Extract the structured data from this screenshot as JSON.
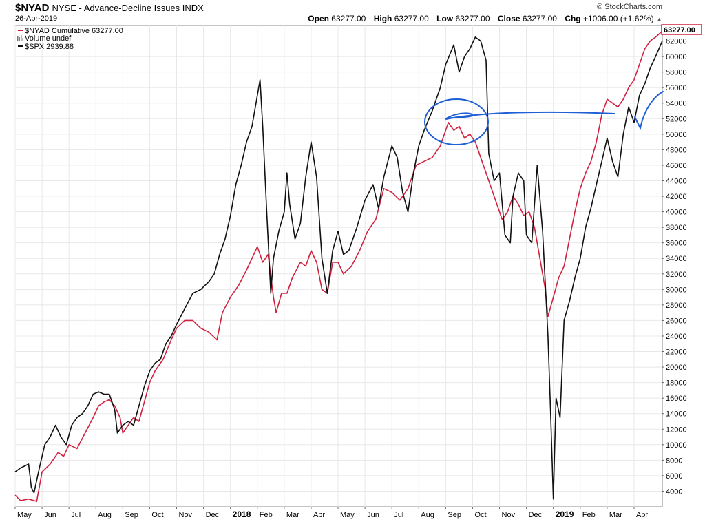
{
  "header": {
    "symbol": "$NYAD",
    "title": "NYSE - Advance-Decline Issues INDX",
    "date": "26-Apr-2019",
    "brand": "© StockCharts.com",
    "open_label": "Open",
    "open": "63277.00",
    "high_label": "High",
    "high": "63277.00",
    "low_label": "Low",
    "low": "63277.00",
    "close_label": "Close",
    "close": "63277.00",
    "chg_label": "Chg",
    "chg": "+1006.00 (+1.62%)",
    "chg_arrow": "▲"
  },
  "colors": {
    "nyad": "#d0213f",
    "spx": "#111111",
    "annotation": "#1f5fd6",
    "last_value_box": "#d0213f",
    "grid": "#e8e8e8"
  },
  "chart_data": {
    "type": "line",
    "title": "$NYAD NYSE - Advance-Decline Issues INDX",
    "ylim": [
      2000,
      64000
    ],
    "y_ticks": [
      4000,
      6000,
      8000,
      10000,
      12000,
      14000,
      16000,
      18000,
      20000,
      22000,
      24000,
      26000,
      28000,
      30000,
      32000,
      34000,
      36000,
      38000,
      40000,
      42000,
      44000,
      46000,
      48000,
      50000,
      52000,
      54000,
      56000,
      58000,
      60000,
      62000
    ],
    "x_ticks": [
      "May",
      "Jun",
      "Jul",
      "Aug",
      "Sep",
      "Oct",
      "Nov",
      "Dec",
      "2018",
      "Feb",
      "Mar",
      "Apr",
      "May",
      "Jun",
      "Jul",
      "Aug",
      "Sep",
      "Oct",
      "Nov",
      "Dec",
      "2019",
      "Feb",
      "Mar",
      "Apr"
    ],
    "x_tick_bold": [
      "2018",
      "2019"
    ],
    "last_value_label": "63277.00",
    "legend": [
      {
        "name": "$NYAD Cumulative 63277.00",
        "icon": "line-red"
      },
      {
        "name": "Volume undef",
        "icon": "volume-bars"
      },
      {
        "name": "$SPX 2939.88",
        "icon": "line-black"
      }
    ],
    "series": [
      {
        "name": "$NYAD Cumulative",
        "values": [
          [
            0.0,
            3500
          ],
          [
            0.2,
            2800
          ],
          [
            0.5,
            3000
          ],
          [
            0.8,
            2700
          ],
          [
            1.0,
            6500
          ],
          [
            1.3,
            7500
          ],
          [
            1.6,
            9000
          ],
          [
            1.8,
            8500
          ],
          [
            2.0,
            10000
          ],
          [
            2.3,
            9500
          ],
          [
            2.6,
            11500
          ],
          [
            2.9,
            13500
          ],
          [
            3.1,
            15000
          ],
          [
            3.3,
            15500
          ],
          [
            3.5,
            15800
          ],
          [
            3.7,
            15000
          ],
          [
            3.9,
            13500
          ],
          [
            4.0,
            11500
          ],
          [
            4.2,
            12500
          ],
          [
            4.4,
            13500
          ],
          [
            4.6,
            13000
          ],
          [
            4.8,
            15500
          ],
          [
            5.0,
            18000
          ],
          [
            5.2,
            19500
          ],
          [
            5.5,
            21000
          ],
          [
            5.8,
            23500
          ],
          [
            6.0,
            25000
          ],
          [
            6.3,
            26000
          ],
          [
            6.6,
            26000
          ],
          [
            6.9,
            25000
          ],
          [
            7.2,
            24500
          ],
          [
            7.5,
            23500
          ],
          [
            7.7,
            27000
          ],
          [
            8.0,
            29000
          ],
          [
            8.3,
            30500
          ],
          [
            8.6,
            32500
          ],
          [
            8.8,
            34000
          ],
          [
            9.0,
            35500
          ],
          [
            9.2,
            33500
          ],
          [
            9.4,
            34500
          ],
          [
            9.6,
            29000
          ],
          [
            9.7,
            27000
          ],
          [
            9.9,
            29500
          ],
          [
            10.1,
            29500
          ],
          [
            10.3,
            31500
          ],
          [
            10.6,
            33500
          ],
          [
            10.8,
            33000
          ],
          [
            11.0,
            35000
          ],
          [
            11.2,
            33500
          ],
          [
            11.4,
            30000
          ],
          [
            11.6,
            29500
          ],
          [
            11.8,
            33500
          ],
          [
            12.0,
            33500
          ],
          [
            12.2,
            32000
          ],
          [
            12.5,
            33000
          ],
          [
            12.8,
            35000
          ],
          [
            13.1,
            37500
          ],
          [
            13.4,
            39000
          ],
          [
            13.7,
            43000
          ],
          [
            14.0,
            42500
          ],
          [
            14.3,
            41500
          ],
          [
            14.6,
            43000
          ],
          [
            14.9,
            46000
          ],
          [
            15.2,
            46500
          ],
          [
            15.5,
            47000
          ],
          [
            15.8,
            48500
          ],
          [
            16.1,
            51500
          ],
          [
            16.3,
            50500
          ],
          [
            16.5,
            51000
          ],
          [
            16.7,
            49500
          ],
          [
            16.9,
            50000
          ],
          [
            17.1,
            49000
          ],
          [
            17.3,
            47000
          ],
          [
            17.5,
            45000
          ],
          [
            17.7,
            43000
          ],
          [
            17.9,
            41000
          ],
          [
            18.1,
            39000
          ],
          [
            18.3,
            40000
          ],
          [
            18.5,
            42000
          ],
          [
            18.7,
            41000
          ],
          [
            18.9,
            39500
          ],
          [
            19.1,
            40000
          ],
          [
            19.3,
            38000
          ],
          [
            19.5,
            34000
          ],
          [
            19.7,
            30000
          ],
          [
            19.8,
            26500
          ],
          [
            20.0,
            29000
          ],
          [
            20.2,
            31500
          ],
          [
            20.4,
            33000
          ],
          [
            20.6,
            36500
          ],
          [
            20.8,
            40000
          ],
          [
            21.0,
            43000
          ],
          [
            21.2,
            45000
          ],
          [
            21.4,
            46500
          ],
          [
            21.6,
            49000
          ],
          [
            21.8,
            52500
          ],
          [
            22.0,
            54500
          ],
          [
            22.2,
            54000
          ],
          [
            22.4,
            53500
          ],
          [
            22.6,
            54500
          ],
          [
            22.8,
            56000
          ],
          [
            23.0,
            57000
          ],
          [
            23.2,
            59000
          ],
          [
            23.4,
            61000
          ],
          [
            23.6,
            62000
          ],
          [
            23.8,
            62500
          ],
          [
            24.05,
            63277
          ]
        ]
      },
      {
        "name": "$SPX",
        "values": [
          [
            0.0,
            6500
          ],
          [
            0.2,
            7000
          ],
          [
            0.5,
            7500
          ],
          [
            0.6,
            4500
          ],
          [
            0.7,
            3800
          ],
          [
            0.9,
            7000
          ],
          [
            1.1,
            10000
          ],
          [
            1.3,
            11000
          ],
          [
            1.5,
            12500
          ],
          [
            1.7,
            11000
          ],
          [
            1.9,
            10000
          ],
          [
            2.1,
            12500
          ],
          [
            2.3,
            13500
          ],
          [
            2.5,
            14000
          ],
          [
            2.7,
            15000
          ],
          [
            2.9,
            16500
          ],
          [
            3.1,
            16800
          ],
          [
            3.3,
            16500
          ],
          [
            3.5,
            16500
          ],
          [
            3.7,
            14500
          ],
          [
            3.8,
            11500
          ],
          [
            4.0,
            12500
          ],
          [
            4.2,
            13000
          ],
          [
            4.4,
            12500
          ],
          [
            4.6,
            15000
          ],
          [
            4.8,
            17500
          ],
          [
            5.0,
            19500
          ],
          [
            5.2,
            20500
          ],
          [
            5.4,
            21000
          ],
          [
            5.6,
            23000
          ],
          [
            5.8,
            24000
          ],
          [
            6.0,
            25500
          ],
          [
            6.3,
            27500
          ],
          [
            6.6,
            29500
          ],
          [
            6.9,
            30000
          ],
          [
            7.2,
            31000
          ],
          [
            7.4,
            32000
          ],
          [
            7.6,
            34500
          ],
          [
            7.8,
            36500
          ],
          [
            8.0,
            39500
          ],
          [
            8.2,
            43500
          ],
          [
            8.4,
            46000
          ],
          [
            8.6,
            49000
          ],
          [
            8.8,
            51000
          ],
          [
            9.0,
            55000
          ],
          [
            9.1,
            57000
          ],
          [
            9.2,
            51000
          ],
          [
            9.35,
            40000
          ],
          [
            9.5,
            29500
          ],
          [
            9.6,
            34000
          ],
          [
            9.8,
            37500
          ],
          [
            10.0,
            40000
          ],
          [
            10.1,
            45000
          ],
          [
            10.2,
            41000
          ],
          [
            10.4,
            36500
          ],
          [
            10.6,
            38500
          ],
          [
            10.8,
            44500
          ],
          [
            11.0,
            49000
          ],
          [
            11.2,
            44500
          ],
          [
            11.4,
            34000
          ],
          [
            11.6,
            29500
          ],
          [
            11.8,
            35000
          ],
          [
            12.0,
            37500
          ],
          [
            12.2,
            34500
          ],
          [
            12.4,
            35000
          ],
          [
            12.7,
            38000
          ],
          [
            13.0,
            41500
          ],
          [
            13.3,
            43500
          ],
          [
            13.5,
            40500
          ],
          [
            13.7,
            44500
          ],
          [
            14.0,
            48500
          ],
          [
            14.2,
            47000
          ],
          [
            14.4,
            42500
          ],
          [
            14.6,
            40000
          ],
          [
            14.8,
            45000
          ],
          [
            15.0,
            48500
          ],
          [
            15.2,
            50500
          ],
          [
            15.5,
            53000
          ],
          [
            15.8,
            56000
          ],
          [
            16.0,
            59000
          ],
          [
            16.3,
            61500
          ],
          [
            16.5,
            58000
          ],
          [
            16.7,
            60000
          ],
          [
            16.9,
            61000
          ],
          [
            17.1,
            62500
          ],
          [
            17.3,
            62000
          ],
          [
            17.5,
            59500
          ],
          [
            17.6,
            47500
          ],
          [
            17.8,
            44000
          ],
          [
            18.0,
            45000
          ],
          [
            18.2,
            37000
          ],
          [
            18.4,
            36000
          ],
          [
            18.5,
            42000
          ],
          [
            18.7,
            45000
          ],
          [
            18.9,
            44000
          ],
          [
            19.0,
            37000
          ],
          [
            19.2,
            36000
          ],
          [
            19.4,
            46000
          ],
          [
            19.6,
            37500
          ],
          [
            19.8,
            24000
          ],
          [
            19.9,
            14000
          ],
          [
            20.0,
            3000
          ],
          [
            20.1,
            16000
          ],
          [
            20.25,
            13500
          ],
          [
            20.4,
            26000
          ],
          [
            20.6,
            28500
          ],
          [
            20.8,
            31500
          ],
          [
            21.0,
            34000
          ],
          [
            21.2,
            38000
          ],
          [
            21.4,
            40500
          ],
          [
            21.6,
            43500
          ],
          [
            21.8,
            46500
          ],
          [
            22.0,
            49500
          ],
          [
            22.2,
            46500
          ],
          [
            22.4,
            44500
          ],
          [
            22.6,
            50000
          ],
          [
            22.8,
            53500
          ],
          [
            23.0,
            51500
          ],
          [
            23.2,
            55000
          ],
          [
            23.4,
            56500
          ],
          [
            23.6,
            58500
          ],
          [
            23.8,
            60000
          ],
          [
            24.05,
            62000
          ]
        ]
      }
    ]
  }
}
